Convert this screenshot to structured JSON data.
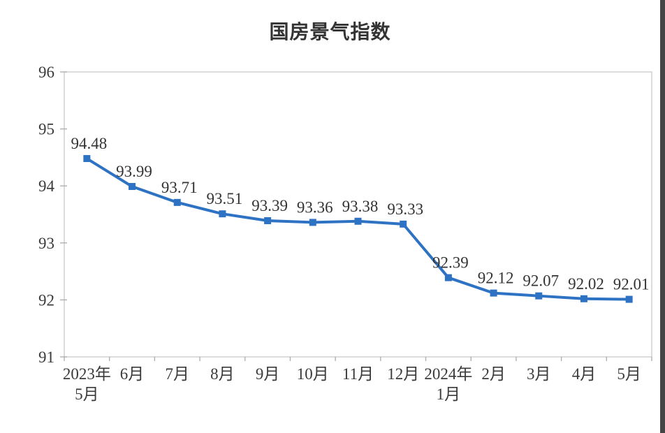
{
  "page": {
    "background": "#FFFFFF",
    "right_edge_bar_color": "#454545"
  },
  "chart_data": {
    "type": "line",
    "title": "国房景气指数",
    "categories": [
      [
        "2023年",
        "5月"
      ],
      [
        "6月"
      ],
      [
        "7月"
      ],
      [
        "8月"
      ],
      [
        "9月"
      ],
      [
        "10月"
      ],
      [
        "11月"
      ],
      [
        "12月"
      ],
      [
        "2024年",
        "1月"
      ],
      [
        "2月"
      ],
      [
        "3月"
      ],
      [
        "4月"
      ],
      [
        "5月"
      ]
    ],
    "series": [
      {
        "name": "国房景气指数",
        "values": [
          94.48,
          93.99,
          93.71,
          93.51,
          93.39,
          93.36,
          93.38,
          93.33,
          92.39,
          92.12,
          92.07,
          92.02,
          92.01
        ]
      }
    ],
    "data_labels": [
      "94.48",
      "93.99",
      "93.71",
      "93.51",
      "93.39",
      "93.36",
      "93.38",
      "93.33",
      "92.39",
      "92.12",
      "92.07",
      "92.02",
      "92.01"
    ],
    "xlabel": "",
    "ylabel": "",
    "ylim": [
      91,
      96
    ],
    "yticks": [
      91,
      92,
      93,
      94,
      95,
      96
    ],
    "grid": false,
    "legend": "none",
    "marker": "square",
    "colors": {
      "line": "#2E73C3",
      "marker": "#2E73C3",
      "axis": "#C8C8C8",
      "tick": "#ABABAB",
      "label_text": "#333333",
      "axis_text": "#3A3A3A",
      "title_text": "#333333"
    }
  }
}
